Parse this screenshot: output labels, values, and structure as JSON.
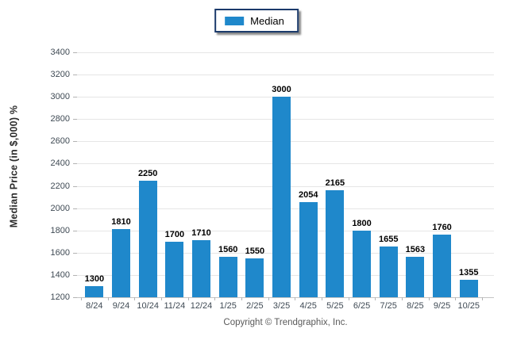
{
  "legend": {
    "label": "Median"
  },
  "footer": {
    "text": "Copyright © Trendgraphix, Inc."
  },
  "colors": {
    "bar": "#1F88CB",
    "legend_border": "#1B3A6B",
    "gridline": "#E6E6E6",
    "axis_line": "#C4C4C4",
    "tick": "#B3B3B3",
    "axis_text": "#3F4A54",
    "value_label": "#000000",
    "footer_text": "#5A5A5A"
  },
  "chart_data": {
    "type": "bar",
    "title": "",
    "categories": [
      "8/24",
      "9/24",
      "10/24",
      "11/24",
      "12/24",
      "1/25",
      "2/25",
      "3/25",
      "4/25",
      "5/25",
      "6/25",
      "7/25",
      "8/25",
      "9/25",
      "10/25"
    ],
    "series": [
      {
        "name": "Median",
        "values": [
          1300,
          1810,
          2250,
          1700,
          1710,
          1560,
          1550,
          3000,
          2054,
          2165,
          1800,
          1655,
          1563,
          1760,
          1355
        ]
      }
    ],
    "xlabel": "",
    "ylabel": "Median Price (in $,000) %",
    "ylim": [
      1200,
      3400
    ],
    "ytick_step": 200,
    "grid": true,
    "legend_position": "top-center",
    "value_labels": true
  }
}
